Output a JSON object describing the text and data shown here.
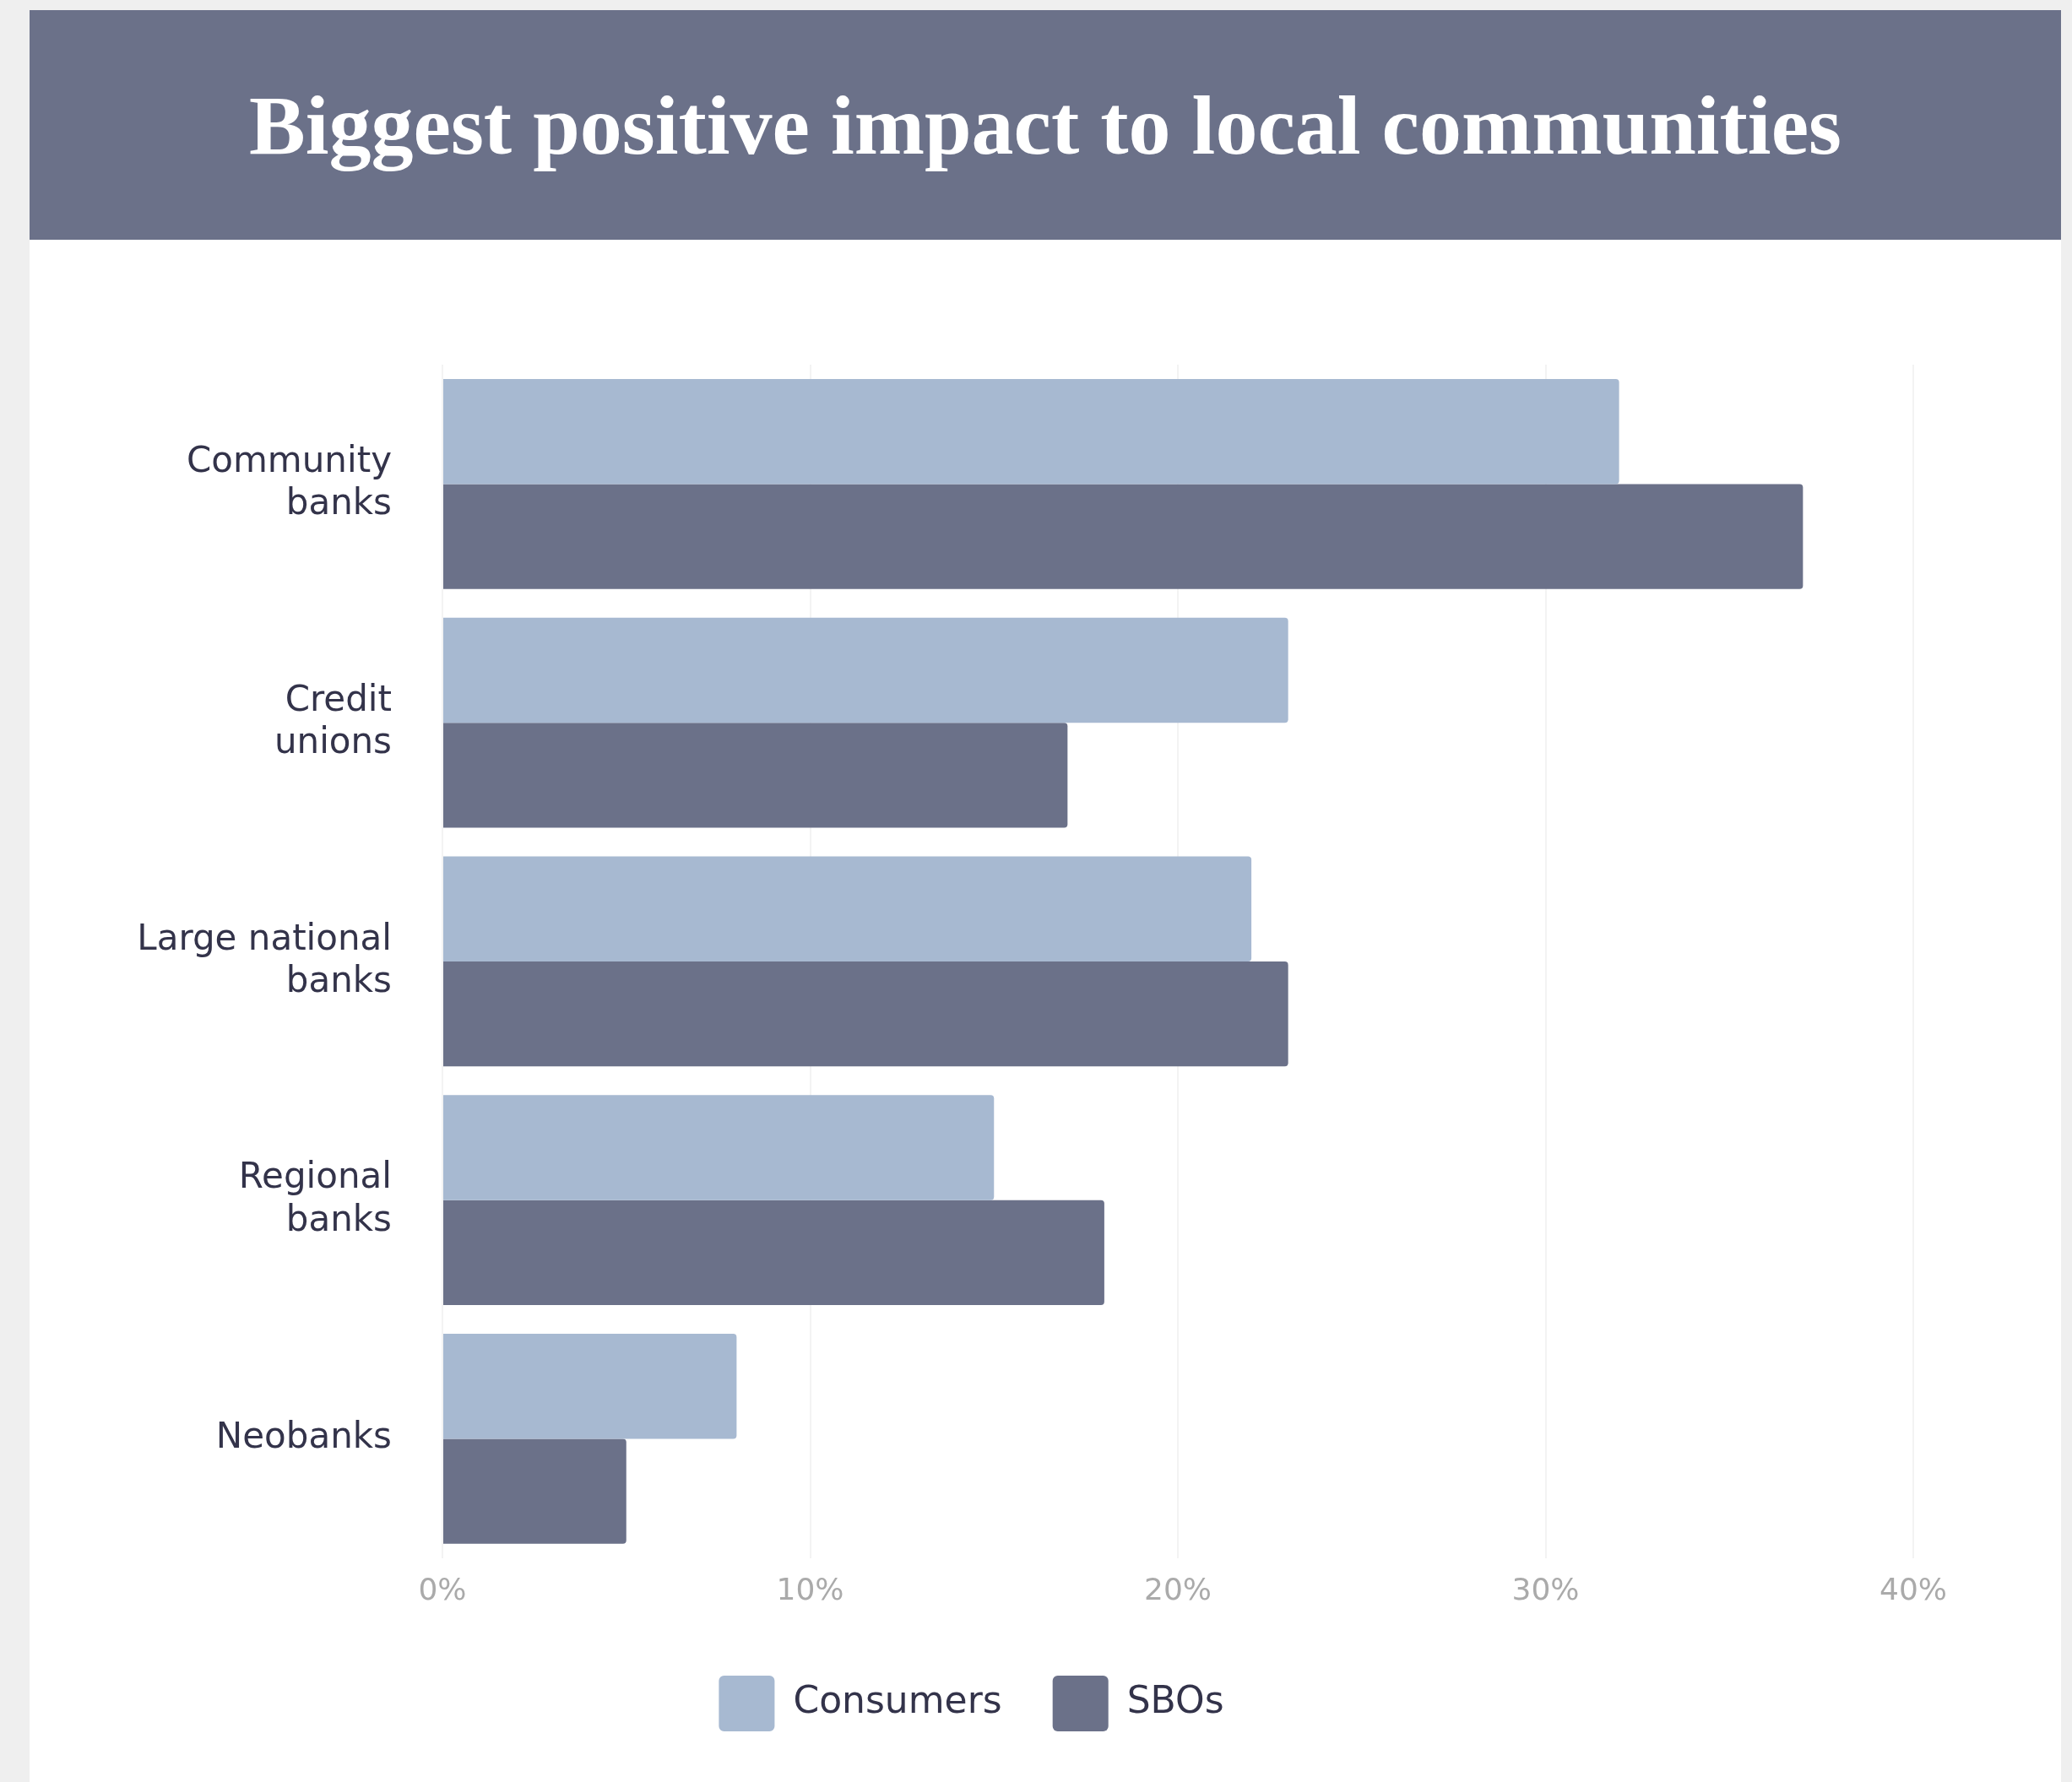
{
  "chart_data": {
    "type": "bar",
    "orientation": "horizontal",
    "title": "Biggest positive impact to local communities",
    "categories": [
      "Community banks",
      "Credit unions",
      "Large national banks",
      "Regional banks",
      "Neobanks"
    ],
    "series": [
      {
        "name": "Consumers",
        "color": "#a7b9d1",
        "values": [
          32,
          23,
          22,
          15,
          8
        ]
      },
      {
        "name": "SBOs",
        "color": "#6b7189",
        "values": [
          37,
          17,
          23,
          18,
          5
        ]
      }
    ],
    "xlim": [
      0,
      40
    ],
    "xticks": [
      {
        "value": 0,
        "label": "0%"
      },
      {
        "value": 10,
        "label": "10%"
      },
      {
        "value": 20,
        "label": "20%"
      },
      {
        "value": 30,
        "label": "30%"
      },
      {
        "value": 40,
        "label": "40%"
      }
    ],
    "grid": "x",
    "legend": "bottom"
  }
}
